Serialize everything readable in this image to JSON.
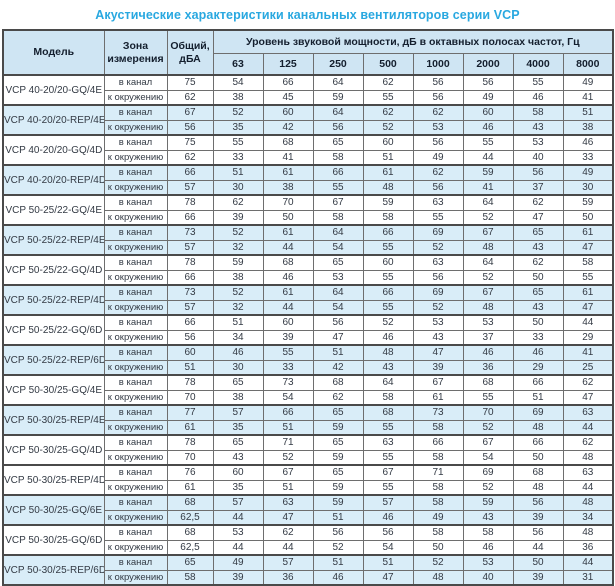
{
  "title": "Акустические характеристики канальных вентиляторов  серии VCP",
  "colors": {
    "title_accent": "#29a8e0",
    "header_bg": "#cfe5f3",
    "shaded_row_bg": "#d9edf8",
    "border_dark": "#4a4a4a",
    "text": "#333a44"
  },
  "table": {
    "headers": {
      "model": "Модель",
      "zone": "Зона измерения",
      "total": "Общий, дБА",
      "spl": "Уровень звуковой мощности, дБ в октавных полосах частот, Гц",
      "frequencies": [
        "63",
        "125",
        "250",
        "500",
        "1000",
        "2000",
        "4000",
        "8000"
      ]
    },
    "rows": [
      {
        "model": "VCP 40-20/20-GQ/4E",
        "shaded": false,
        "duct": {
          "zone": "в канал",
          "total": "75",
          "bands": [
            "54",
            "66",
            "64",
            "62",
            "56",
            "56",
            "55",
            "49"
          ]
        },
        "env": {
          "zone": "к окружению",
          "total": "62",
          "bands": [
            "38",
            "45",
            "59",
            "55",
            "56",
            "49",
            "46",
            "41"
          ]
        }
      },
      {
        "model": "VCP 40-20/20-REP/4E",
        "shaded": true,
        "duct": {
          "zone": "в канал",
          "total": "67",
          "bands": [
            "52",
            "60",
            "64",
            "62",
            "62",
            "60",
            "58",
            "51"
          ]
        },
        "env": {
          "zone": "к окружению",
          "total": "56",
          "bands": [
            "35",
            "42",
            "56",
            "52",
            "53",
            "46",
            "43",
            "38"
          ]
        }
      },
      {
        "model": "VCP 40-20/20-GQ/4D",
        "shaded": false,
        "duct": {
          "zone": "в канал",
          "total": "75",
          "bands": [
            "55",
            "68",
            "65",
            "60",
            "56",
            "55",
            "53",
            "46"
          ]
        },
        "env": {
          "zone": "к окружению",
          "total": "62",
          "bands": [
            "33",
            "41",
            "58",
            "51",
            "49",
            "44",
            "40",
            "33"
          ]
        }
      },
      {
        "model": "VCP 40-20/20-REP/4D",
        "shaded": true,
        "duct": {
          "zone": "в канал",
          "total": "66",
          "bands": [
            "51",
            "61",
            "66",
            "61",
            "62",
            "59",
            "56",
            "49"
          ]
        },
        "env": {
          "zone": "к окружению",
          "total": "57",
          "bands": [
            "30",
            "38",
            "55",
            "48",
            "56",
            "41",
            "37",
            "30"
          ]
        }
      },
      {
        "model": "VCP 50-25/22-GQ/4E",
        "shaded": false,
        "duct": {
          "zone": "в канал",
          "total": "78",
          "bands": [
            "62",
            "70",
            "67",
            "59",
            "63",
            "64",
            "62",
            "59"
          ]
        },
        "env": {
          "zone": "к окружению",
          "total": "66",
          "bands": [
            "39",
            "50",
            "58",
            "58",
            "55",
            "52",
            "47",
            "50"
          ]
        }
      },
      {
        "model": "VCP 50-25/22-REP/4E",
        "shaded": true,
        "duct": {
          "zone": "в канал",
          "total": "73",
          "bands": [
            "52",
            "61",
            "64",
            "66",
            "69",
            "67",
            "65",
            "61"
          ]
        },
        "env": {
          "zone": "к окружению",
          "total": "57",
          "bands": [
            "32",
            "44",
            "54",
            "55",
            "52",
            "48",
            "43",
            "47"
          ]
        }
      },
      {
        "model": "VCP 50-25/22-GQ/4D",
        "shaded": false,
        "duct": {
          "zone": "в канал",
          "total": "78",
          "bands": [
            "59",
            "68",
            "65",
            "60",
            "63",
            "64",
            "62",
            "58"
          ]
        },
        "env": {
          "zone": "к окружению",
          "total": "66",
          "bands": [
            "38",
            "46",
            "53",
            "55",
            "56",
            "52",
            "50",
            "55"
          ]
        }
      },
      {
        "model": "VCP 50-25/22-REP/4D",
        "shaded": true,
        "duct": {
          "zone": "в канал",
          "total": "73",
          "bands": [
            "52",
            "61",
            "64",
            "66",
            "69",
            "67",
            "65",
            "61"
          ]
        },
        "env": {
          "zone": "к окружению",
          "total": "57",
          "bands": [
            "32",
            "44",
            "54",
            "55",
            "52",
            "48",
            "43",
            "47"
          ]
        }
      },
      {
        "model": "VCP 50-25/22-GQ/6D",
        "shaded": false,
        "duct": {
          "zone": "в канал",
          "total": "66",
          "bands": [
            "51",
            "60",
            "56",
            "52",
            "53",
            "53",
            "50",
            "44"
          ]
        },
        "env": {
          "zone": "к окружению",
          "total": "56",
          "bands": [
            "34",
            "39",
            "47",
            "46",
            "43",
            "37",
            "33",
            "29"
          ]
        }
      },
      {
        "model": "VCP 50-25/22-REP/6D",
        "shaded": true,
        "duct": {
          "zone": "в канал",
          "total": "60",
          "bands": [
            "46",
            "55",
            "51",
            "48",
            "47",
            "46",
            "46",
            "41"
          ]
        },
        "env": {
          "zone": "к окружению",
          "total": "51",
          "bands": [
            "30",
            "33",
            "42",
            "43",
            "39",
            "36",
            "29",
            "25"
          ]
        }
      },
      {
        "model": "VCP 50-30/25-GQ/4E",
        "shaded": false,
        "duct": {
          "zone": "в канал",
          "total": "78",
          "bands": [
            "65",
            "73",
            "68",
            "64",
            "67",
            "68",
            "66",
            "62"
          ]
        },
        "env": {
          "zone": "к окружению",
          "total": "70",
          "bands": [
            "38",
            "54",
            "62",
            "58",
            "61",
            "55",
            "51",
            "47"
          ]
        }
      },
      {
        "model": "VCP 50-30/25-REP/4E",
        "shaded": true,
        "duct": {
          "zone": "в канал",
          "total": "77",
          "bands": [
            "57",
            "66",
            "65",
            "68",
            "73",
            "70",
            "69",
            "63"
          ]
        },
        "env": {
          "zone": "к окружению",
          "total": "61",
          "bands": [
            "35",
            "51",
            "59",
            "55",
            "58",
            "52",
            "48",
            "44"
          ]
        }
      },
      {
        "model": "VCP 50-30/25-GQ/4D",
        "shaded": false,
        "duct": {
          "zone": "в канал",
          "total": "78",
          "bands": [
            "65",
            "71",
            "65",
            "63",
            "66",
            "67",
            "66",
            "62"
          ]
        },
        "env": {
          "zone": "к окружению",
          "total": "70",
          "bands": [
            "43",
            "52",
            "59",
            "55",
            "58",
            "54",
            "50",
            "48"
          ]
        }
      },
      {
        "model": "VCP 50-30/25-REP/4D",
        "shaded": false,
        "duct": {
          "zone": "в канал",
          "total": "76",
          "bands": [
            "60",
            "67",
            "65",
            "67",
            "71",
            "69",
            "68",
            "63"
          ]
        },
        "env": {
          "zone": "к окружению",
          "total": "61",
          "bands": [
            "35",
            "51",
            "59",
            "55",
            "58",
            "52",
            "48",
            "44"
          ]
        }
      },
      {
        "model": "VCP 50-30/25-GQ/6E",
        "shaded": true,
        "duct": {
          "zone": "в канал",
          "total": "68",
          "bands": [
            "57",
            "63",
            "59",
            "57",
            "58",
            "59",
            "56",
            "48"
          ]
        },
        "env": {
          "zone": "к окружению",
          "total": "62,5",
          "bands": [
            "44",
            "47",
            "51",
            "46",
            "49",
            "43",
            "39",
            "34"
          ]
        }
      },
      {
        "model": "VCP 50-30/25-GQ/6D",
        "shaded": false,
        "duct": {
          "zone": "в канал",
          "total": "68",
          "bands": [
            "53",
            "62",
            "56",
            "56",
            "58",
            "58",
            "56",
            "48"
          ]
        },
        "env": {
          "zone": "к окружению",
          "total": "62,5",
          "bands": [
            "44",
            "44",
            "52",
            "54",
            "50",
            "46",
            "44",
            "36"
          ]
        }
      },
      {
        "model": "VCP 50-30/25-REP/6D",
        "shaded": true,
        "duct": {
          "zone": "в канал",
          "total": "65",
          "bands": [
            "49",
            "57",
            "51",
            "51",
            "52",
            "53",
            "50",
            "44"
          ]
        },
        "env": {
          "zone": "к окружению",
          "total": "58",
          "bands": [
            "39",
            "36",
            "46",
            "47",
            "48",
            "40",
            "39",
            "31"
          ]
        }
      }
    ]
  }
}
